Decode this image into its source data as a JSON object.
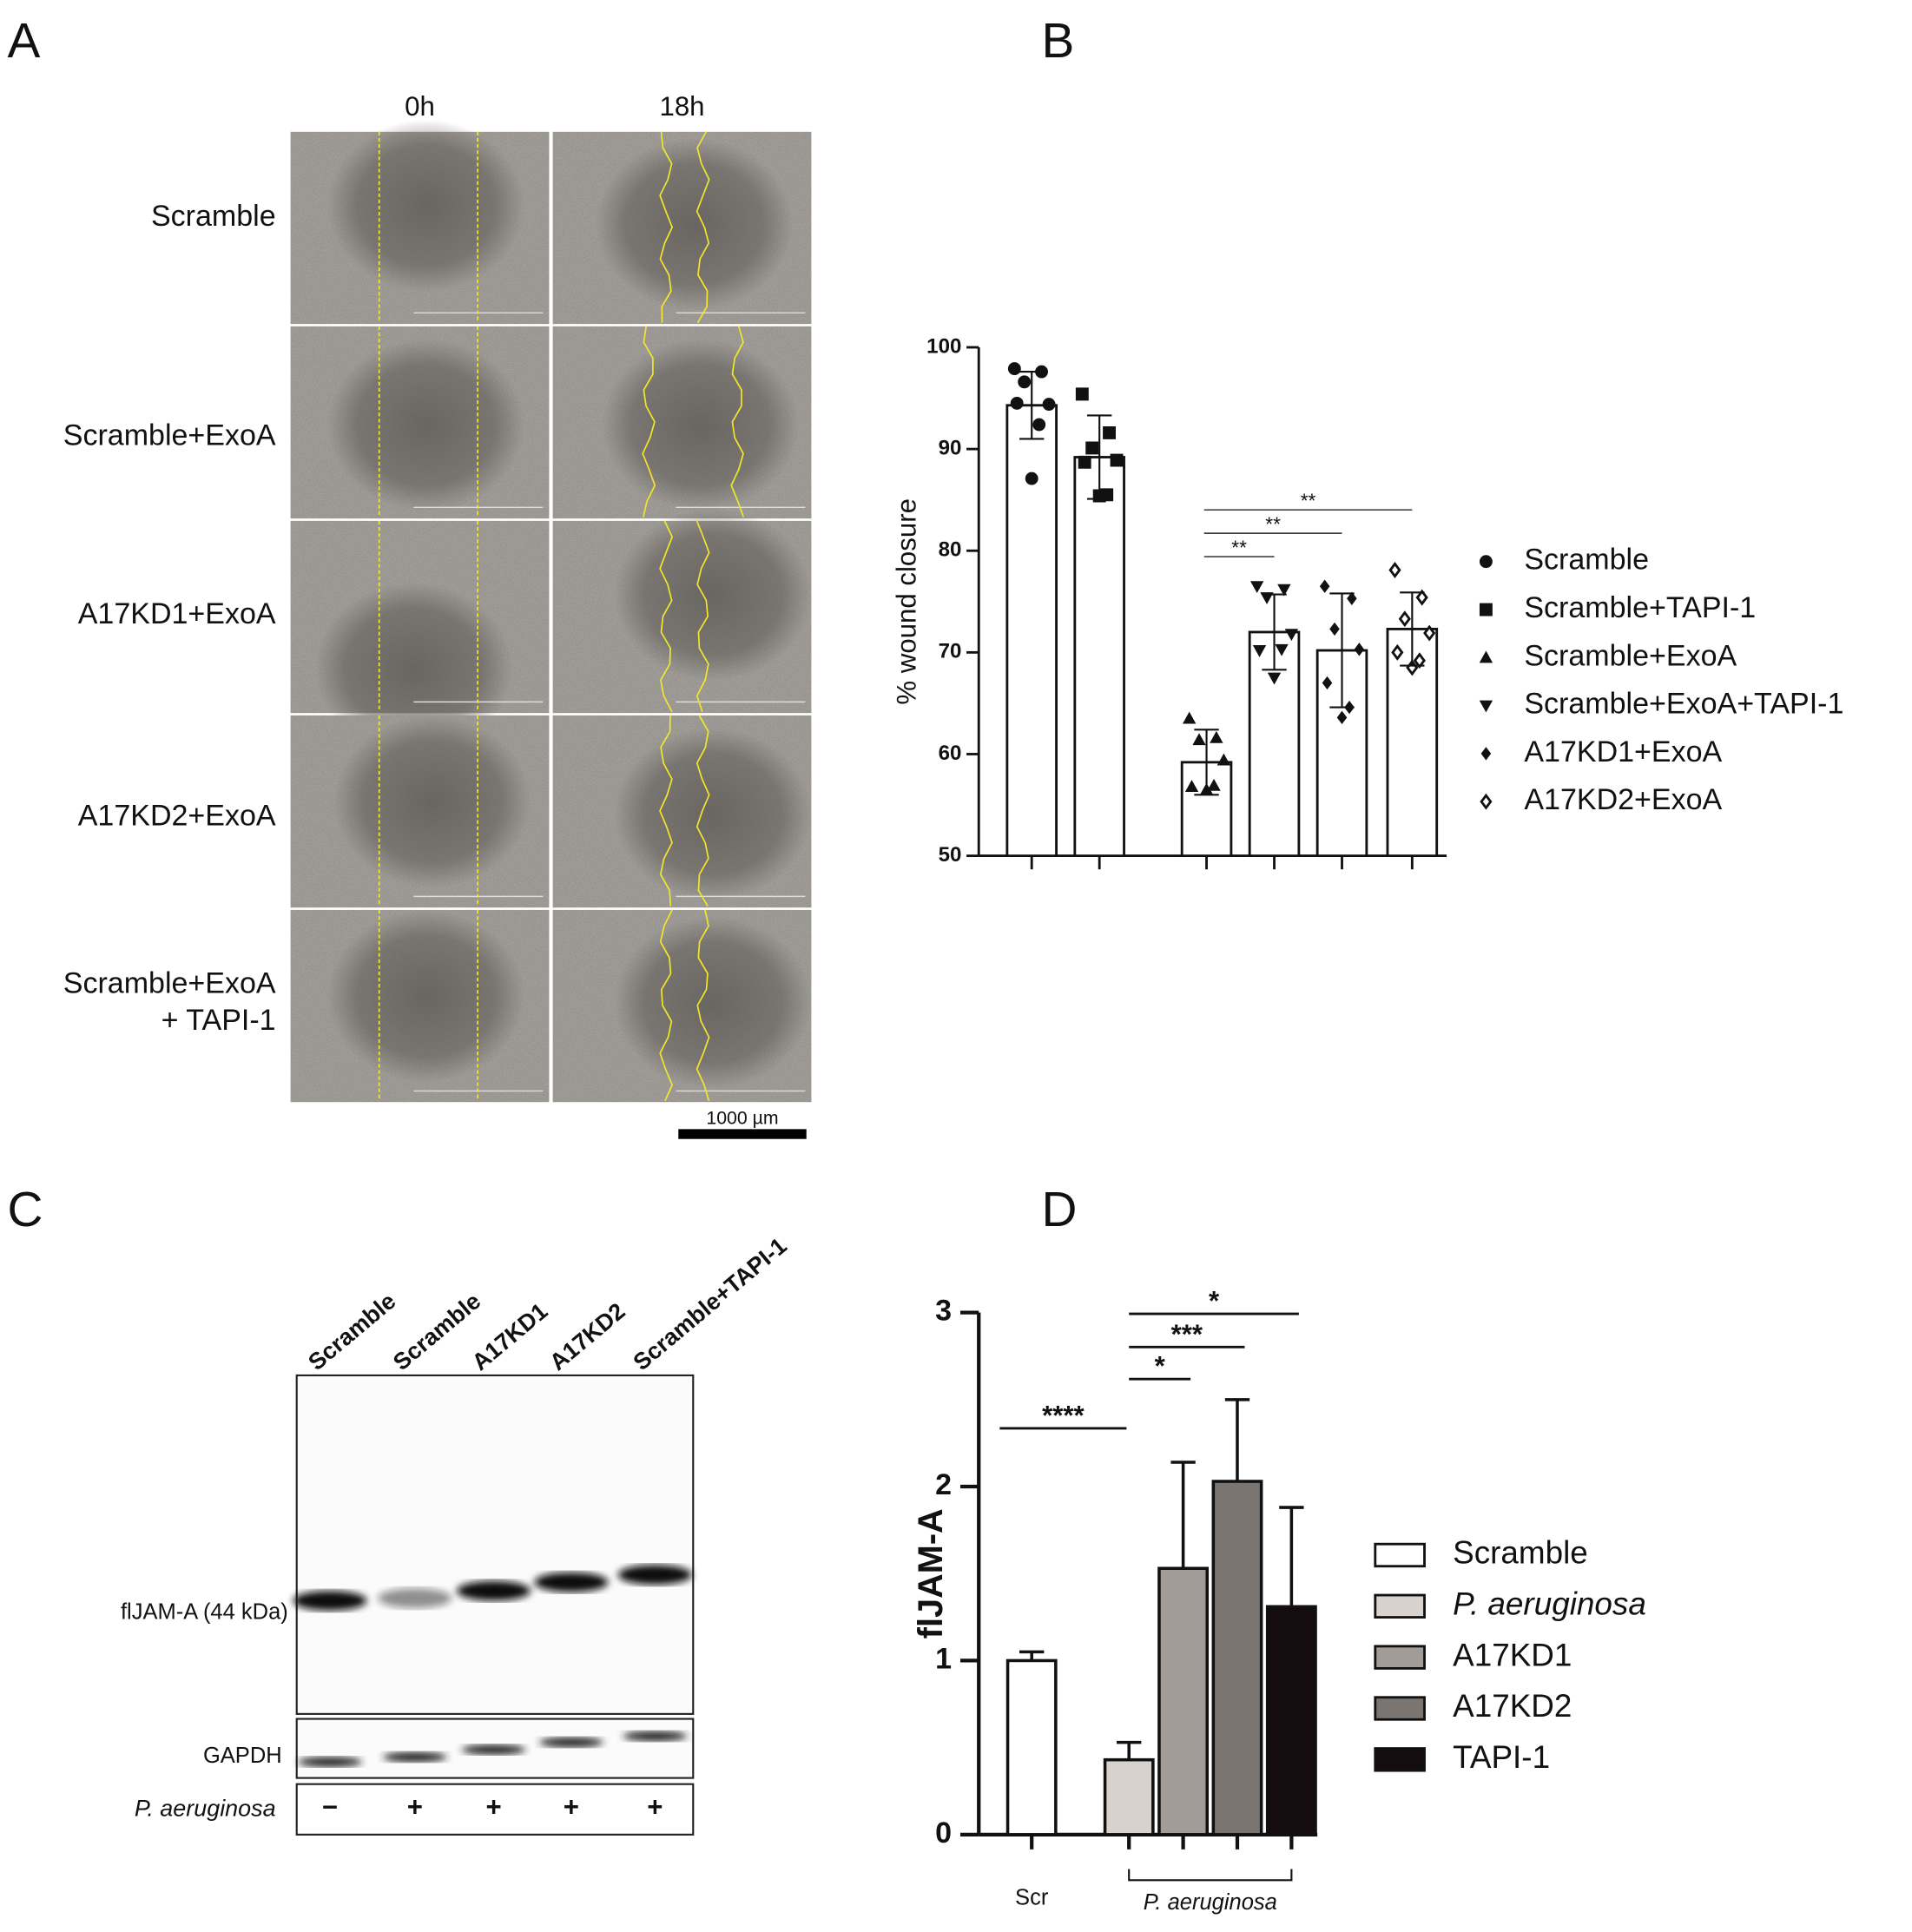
{
  "panel_labels": [
    "A",
    "B",
    "C",
    "D"
  ],
  "panel_a": {
    "columns": [
      "0h",
      "18h"
    ],
    "rows": [
      [
        "Scramble"
      ],
      [
        "Scramble+ExoA"
      ],
      [
        "A17KD1+ExoA"
      ],
      [
        "A17KD2+ExoA"
      ],
      [
        "Scramble+ExoA",
        "+ TAPI-1"
      ]
    ],
    "scale_bar": "1000 µm"
  },
  "panel_c": {
    "lanes": [
      "Scramble",
      "Scramble",
      "A17KD1",
      "A17KD2",
      "Scramble+TAPI-1"
    ],
    "bands": [
      "flJAM-A (44 kDa)",
      "GAPDH"
    ],
    "treatment": {
      "label": "P. aeruginosa",
      "lanes": [
        "−",
        "+",
        "+",
        "+",
        "+"
      ]
    }
  },
  "chart_data": [
    {
      "type": "bar-scatter",
      "ylabel": "% wound closure",
      "ylim": [
        50,
        100
      ],
      "yticks": [
        50,
        60,
        70,
        80,
        90,
        100
      ],
      "categories": [
        null,
        null,
        null,
        null,
        null,
        null
      ],
      "values": [
        94.3,
        89.2,
        59.2,
        72.0,
        70.2,
        72.3
      ],
      "errors": [
        3.3,
        4.1,
        3.2,
        3.7,
        5.6,
        3.6
      ],
      "points": [
        [
          97.9,
          97.6,
          96.6,
          94.4,
          94.5,
          92.4,
          87.1
        ],
        [
          95.4,
          91.6,
          90.1,
          88.9,
          88.7,
          85.5,
          85.4
        ],
        [
          63.5,
          61.6,
          61.4,
          59.4,
          56.8,
          56.9,
          56.5
        ],
        [
          76.5,
          76.2,
          75.4,
          71.8,
          70.2,
          70.3,
          67.5
        ],
        [
          76.5,
          75.3,
          72.3,
          70.3,
          67.0,
          64.6,
          63.6
        ],
        [
          78.1,
          75.4,
          73.3,
          71.9,
          70.0,
          69.2,
          68.5
        ]
      ],
      "legend": [
        "Scramble",
        "Scramble+TAPI-1",
        "Scramble+ExoA",
        "Scramble+ExoA+TAPI-1",
        "A17KD1+ExoA",
        "A17KD2+ExoA"
      ],
      "markers": [
        "circle",
        "square",
        "triangle-up",
        "triangle-down",
        "diamond",
        "diamond-open"
      ],
      "bar_color": "#ffffff",
      "annotations": [
        {
          "text": "**",
          "groups": [
            2,
            3
          ]
        },
        {
          "text": "**",
          "groups": [
            2,
            4
          ]
        },
        {
          "text": "**",
          "groups": [
            2,
            5
          ]
        }
      ]
    },
    {
      "type": "bar",
      "ylabel": "flJAM-A",
      "ylim": [
        0,
        3
      ],
      "yticks": [
        0,
        1,
        2,
        3
      ],
      "categories": [
        "Scramble",
        "P. aeruginosa",
        "A17KD1",
        "A17KD2",
        "TAPI-1"
      ],
      "legend_italic": [
        false,
        true,
        false,
        false,
        false
      ],
      "colors": [
        "#ffffff",
        "#d8d2cd",
        "#a29c98",
        "#7b7571",
        "#140c0e"
      ],
      "values": [
        1.0,
        0.43,
        1.53,
        2.03,
        1.31
      ],
      "errors": [
        0.05,
        0.1,
        0.61,
        0.47,
        0.57
      ],
      "xlabels": [
        {
          "text": "Scr",
          "groups": [
            0,
            0
          ]
        },
        {
          "text": "P. aeruginosa",
          "groups": [
            1,
            4
          ]
        }
      ],
      "annotations": [
        {
          "text": "****",
          "groups": [
            0,
            1
          ]
        },
        {
          "text": "*",
          "groups": [
            1,
            2
          ]
        },
        {
          "text": "***",
          "groups": [
            1,
            3
          ]
        },
        {
          "text": "*",
          "groups": [
            1,
            4
          ]
        }
      ]
    }
  ]
}
